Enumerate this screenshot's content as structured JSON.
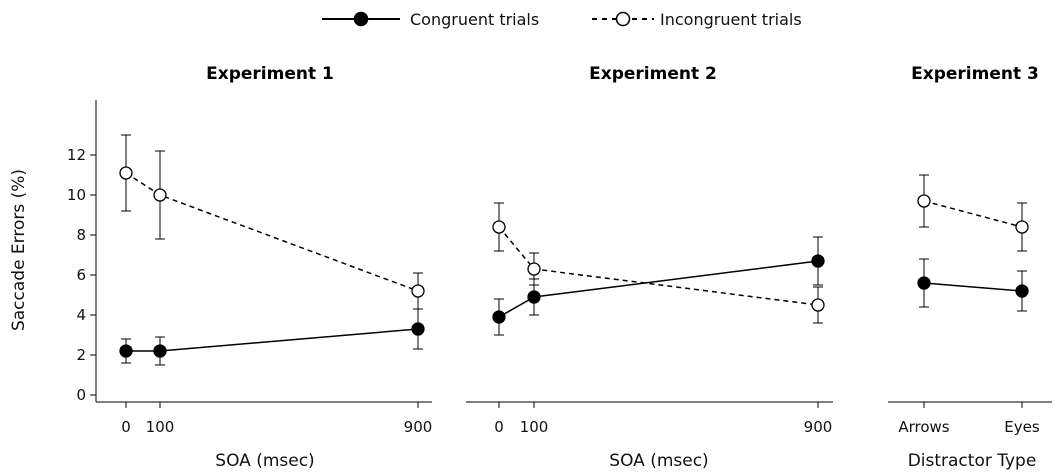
{
  "legend": {
    "congruent_label": "Congruent trials",
    "incongruent_label": "Incongruent trials"
  },
  "colors": {
    "ink": "#000000",
    "open_marker_fill": "#ffffff"
  },
  "ylabel": "Saccade Errors (%)",
  "chart_data": [
    {
      "type": "line",
      "title": "Experiment 1",
      "xlabel": "SOA (msec)",
      "x": [
        0,
        100,
        900
      ],
      "xticks": [
        "0",
        "100",
        "900"
      ],
      "ylim": [
        0,
        14
      ],
      "yticks": [
        0,
        2,
        4,
        6,
        8,
        10,
        12
      ],
      "series": [
        {
          "name": "Congruent trials",
          "style": "solid-filled",
          "values": [
            2.2,
            2.2,
            3.3
          ],
          "err": [
            0.6,
            0.7,
            1.0
          ]
        },
        {
          "name": "Incongruent trials",
          "style": "dashed-open",
          "values": [
            11.1,
            10.0,
            5.2
          ],
          "err": [
            1.9,
            2.2,
            0.9
          ]
        }
      ]
    },
    {
      "type": "line",
      "title": "Experiment 2",
      "xlabel": "SOA (msec)",
      "x": [
        0,
        100,
        900
      ],
      "xticks": [
        "0",
        "100",
        "900"
      ],
      "ylim": [
        0,
        14
      ],
      "series": [
        {
          "name": "Congruent trials",
          "style": "solid-filled",
          "values": [
            3.9,
            4.9,
            6.7
          ],
          "err": [
            0.9,
            0.9,
            1.2
          ]
        },
        {
          "name": "Incongruent trials",
          "style": "dashed-open",
          "values": [
            8.4,
            6.3,
            4.5
          ],
          "err": [
            1.2,
            0.8,
            0.9
          ]
        }
      ]
    },
    {
      "type": "line",
      "title": "Experiment 3",
      "xlabel": "Distractor Type",
      "categories": [
        "Arrows",
        "Eyes"
      ],
      "ylim": [
        0,
        14
      ],
      "series": [
        {
          "name": "Congruent trials",
          "style": "solid-filled",
          "values": [
            5.6,
            5.2
          ],
          "err": [
            1.2,
            1.0
          ]
        },
        {
          "name": "Incongruent trials",
          "style": "dashed-open",
          "values": [
            9.7,
            8.4
          ],
          "err": [
            1.3,
            1.2
          ]
        }
      ]
    }
  ]
}
